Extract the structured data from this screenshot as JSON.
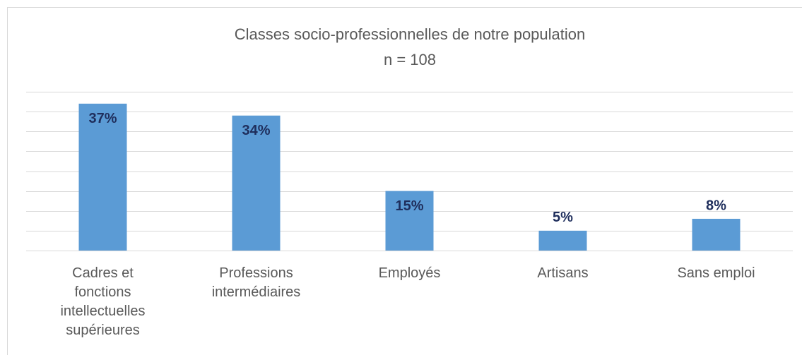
{
  "chart_data": {
    "type": "bar",
    "title": "Classes socio-professionnelles de notre population",
    "subtitle": "n = 108",
    "categories": [
      "Cadres et fonctions intellectuelles supérieures",
      "Professions intermédiaires",
      "Employés",
      "Artisans",
      "Sans emploi"
    ],
    "values": [
      37,
      34,
      15,
      5,
      8
    ],
    "value_labels": [
      "37%",
      "34%",
      "15%",
      "5%",
      "8%"
    ],
    "color": "#5b9bd5",
    "ylim": [
      0,
      40
    ],
    "yticks": [
      0,
      5,
      10,
      15,
      20,
      25,
      30,
      35,
      40
    ],
    "grid": true
  }
}
